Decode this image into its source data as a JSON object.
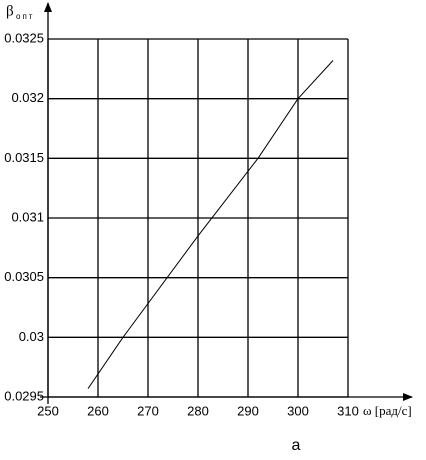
{
  "chart_data": {
    "type": "line",
    "ylabel": "β",
    "ylabel_sub": "опт",
    "xlabel": "ω [рад/с]",
    "caption": "а",
    "x": [
      258,
      265,
      280,
      292,
      300,
      307
    ],
    "series": [
      {
        "name": "β опт",
        "color": "#000000",
        "values": [
          0.02957,
          0.03,
          0.03085,
          0.0315,
          0.032,
          0.03232
        ]
      }
    ],
    "xlim": [
      250,
      310
    ],
    "ylim": [
      0.0295,
      0.0325
    ],
    "xticks": [
      250,
      260,
      270,
      280,
      290,
      300,
      310
    ],
    "yticks": [
      0.0295,
      0.03,
      0.0305,
      0.031,
      0.0315,
      0.032,
      0.0325
    ],
    "grid": true
  }
}
